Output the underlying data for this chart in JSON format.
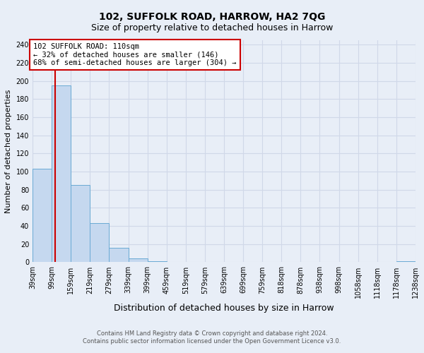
{
  "title": "102, SUFFOLK ROAD, HARROW, HA2 7QG",
  "subtitle": "Size of property relative to detached houses in Harrow",
  "xlabel": "Distribution of detached houses by size in Harrow",
  "ylabel": "Number of detached properties",
  "bar_edges": [
    39,
    99,
    159,
    219,
    279,
    339,
    399,
    459,
    519,
    579,
    639,
    699,
    759,
    818,
    878,
    938,
    998,
    1058,
    1118,
    1178,
    1238
  ],
  "bar_heights": [
    103,
    195,
    85,
    43,
    16,
    4,
    1,
    0,
    0,
    0,
    0,
    0,
    0,
    0,
    0,
    0,
    0,
    0,
    0,
    1
  ],
  "bar_color": "#c5d8ef",
  "bar_edge_color": "#6aaad4",
  "property_line_x": 110,
  "property_line_color": "#cc0000",
  "annotation_text": "102 SUFFOLK ROAD: 110sqm\n← 32% of detached houses are smaller (146)\n68% of semi-detached houses are larger (304) →",
  "annotation_box_color": "#ffffff",
  "annotation_box_edge": "#cc0000",
  "ylim": [
    0,
    245
  ],
  "yticks": [
    0,
    20,
    40,
    60,
    80,
    100,
    120,
    140,
    160,
    180,
    200,
    220,
    240
  ],
  "tick_labels": [
    "39sqm",
    "99sqm",
    "159sqm",
    "219sqm",
    "279sqm",
    "339sqm",
    "399sqm",
    "459sqm",
    "519sqm",
    "579sqm",
    "639sqm",
    "699sqm",
    "759sqm",
    "818sqm",
    "878sqm",
    "938sqm",
    "998sqm",
    "1058sqm",
    "1118sqm",
    "1178sqm",
    "1238sqm"
  ],
  "footer_line1": "Contains HM Land Registry data © Crown copyright and database right 2024.",
  "footer_line2": "Contains public sector information licensed under the Open Government Licence v3.0.",
  "background_color": "#e8eef7",
  "grid_color": "#d0d8e8",
  "title_fontsize": 10,
  "subtitle_fontsize": 9,
  "ylabel_fontsize": 8,
  "xlabel_fontsize": 9,
  "tick_fontsize": 7,
  "footer_fontsize": 6
}
